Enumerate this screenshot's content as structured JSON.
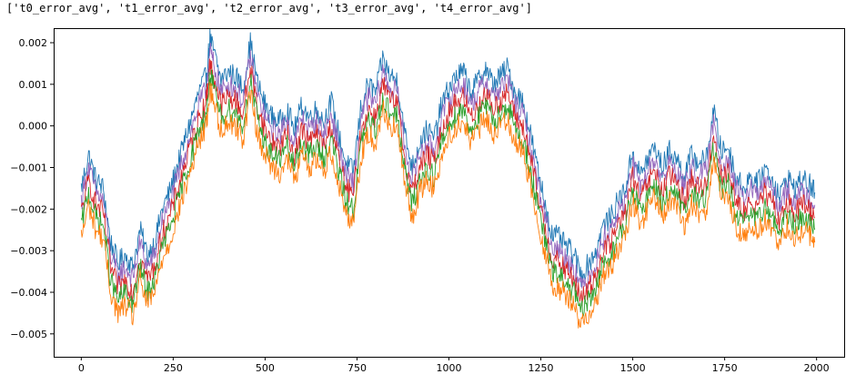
{
  "output_text": "['t0_error_avg', 't1_error_avg', 't2_error_avg', 't3_error_avg', 't4_error_avg']",
  "chart_data": {
    "type": "line",
    "title": "",
    "xlabel": "",
    "ylabel": "",
    "xlim": [
      -75,
      2075
    ],
    "ylim": [
      -0.00555,
      0.00235
    ],
    "xticks": [
      0,
      250,
      500,
      750,
      1000,
      1250,
      1500,
      1750,
      2000
    ],
    "xtick_labels": [
      "0",
      "250",
      "500",
      "750",
      "1000",
      "1250",
      "1500",
      "1750",
      "2000"
    ],
    "yticks": [
      0.002,
      0.001,
      0.0,
      -0.001,
      -0.002,
      -0.003,
      -0.004,
      -0.005
    ],
    "ytick_labels": [
      "0.002",
      "0.001",
      "0.000",
      "−0.001",
      "−0.002",
      "−0.003",
      "−0.004",
      "−0.005"
    ],
    "grid": false,
    "legend": "none",
    "x": [
      0,
      20,
      40,
      60,
      80,
      100,
      120,
      140,
      160,
      180,
      200,
      220,
      240,
      260,
      280,
      300,
      320,
      340,
      350,
      360,
      380,
      400,
      420,
      440,
      460,
      480,
      500,
      520,
      540,
      560,
      580,
      600,
      620,
      640,
      660,
      680,
      700,
      720,
      740,
      760,
      780,
      800,
      820,
      840,
      860,
      880,
      900,
      920,
      940,
      960,
      980,
      1000,
      1020,
      1040,
      1060,
      1080,
      1100,
      1120,
      1140,
      1160,
      1180,
      1200,
      1220,
      1240,
      1260,
      1280,
      1300,
      1320,
      1340,
      1360,
      1380,
      1400,
      1420,
      1440,
      1460,
      1480,
      1500,
      1520,
      1540,
      1560,
      1580,
      1600,
      1620,
      1640,
      1660,
      1680,
      1700,
      1720,
      1740,
      1760,
      1780,
      1800,
      1820,
      1840,
      1860,
      1880,
      1900,
      1920,
      1940,
      1960,
      1980,
      1995
    ],
    "series": [
      {
        "color": "#1f77b4",
        "values": [
          -0.0015,
          -0.0007,
          -0.0013,
          -0.0015,
          -0.0028,
          -0.0033,
          -0.0031,
          -0.0034,
          -0.0025,
          -0.0031,
          -0.0028,
          -0.002,
          -0.0016,
          -0.001,
          -0.0004,
          0.0002,
          0.0008,
          0.0012,
          0.0021,
          0.0018,
          0.0011,
          0.0013,
          0.0012,
          0.0009,
          0.002,
          0.001,
          0.0005,
          0.0002,
          0.0001,
          0.0004,
          -0.0001,
          0.0005,
          0.0002,
          0.0004,
          0.0001,
          0.0006,
          -0.0002,
          -0.0009,
          -0.0011,
          0.0004,
          0.001,
          0.0008,
          0.0016,
          0.0012,
          0.0011,
          -0.0002,
          -0.001,
          -0.0004,
          -0.0001,
          -0.0003,
          0.0005,
          0.0009,
          0.0012,
          0.0013,
          0.0008,
          0.0011,
          0.0014,
          0.001,
          0.0012,
          0.0014,
          0.0008,
          0.0006,
          -0.0001,
          -0.001,
          -0.0018,
          -0.0026,
          -0.0027,
          -0.0029,
          -0.0031,
          -0.0036,
          -0.0033,
          -0.003,
          -0.0024,
          -0.0022,
          -0.0018,
          -0.0015,
          -0.0006,
          -0.0012,
          -0.0008,
          -0.0005,
          -0.001,
          -0.0006,
          -0.0008,
          -0.0012,
          -0.0007,
          -0.0009,
          -0.0008,
          0.0004,
          -0.0006,
          -0.0005,
          -0.0012,
          -0.0015,
          -0.0012,
          -0.0014,
          -0.001,
          -0.0013,
          -0.0017,
          -0.0012,
          -0.0015,
          -0.0013,
          -0.0014,
          -0.0016
        ]
      },
      {
        "color": "#9467bd",
        "values": [
          -0.0018,
          -0.001,
          -0.0016,
          -0.0018,
          -0.0031,
          -0.0036,
          -0.0034,
          -0.0037,
          -0.0028,
          -0.0034,
          -0.0031,
          -0.0023,
          -0.0019,
          -0.0013,
          -0.0007,
          -0.0001,
          0.0005,
          0.0009,
          0.0018,
          0.0015,
          0.0008,
          0.001,
          0.0009,
          0.0006,
          0.0017,
          0.0007,
          0.0002,
          -0.0001,
          -0.0002,
          0.0001,
          -0.0004,
          0.0002,
          -0.0001,
          0.0001,
          -0.0002,
          0.0003,
          -0.0005,
          -0.0012,
          -0.0014,
          0.0001,
          0.0007,
          0.0005,
          0.0013,
          0.0009,
          0.0008,
          -0.0005,
          -0.0013,
          -0.0007,
          -0.0004,
          -0.0006,
          0.0002,
          0.0006,
          0.0009,
          0.001,
          0.0005,
          0.0008,
          0.0011,
          0.0007,
          0.0009,
          0.0011,
          0.0005,
          0.0003,
          -0.0004,
          -0.0013,
          -0.0021,
          -0.0029,
          -0.003,
          -0.0032,
          -0.0034,
          -0.0039,
          -0.0036,
          -0.0033,
          -0.0027,
          -0.0025,
          -0.0021,
          -0.0018,
          -0.0009,
          -0.0015,
          -0.0011,
          -0.0008,
          -0.0013,
          -0.0009,
          -0.0011,
          -0.0015,
          -0.001,
          -0.0012,
          -0.0011,
          0.0001,
          -0.0009,
          -0.0008,
          -0.0015,
          -0.0018,
          -0.0015,
          -0.0017,
          -0.0013,
          -0.0016,
          -0.002,
          -0.0015,
          -0.0018,
          -0.0016,
          -0.0017,
          -0.0019
        ]
      },
      {
        "color": "#d62728",
        "values": [
          -0.0021,
          -0.0013,
          -0.0019,
          -0.0021,
          -0.0034,
          -0.0039,
          -0.0037,
          -0.004,
          -0.0031,
          -0.0037,
          -0.0034,
          -0.0026,
          -0.0022,
          -0.0016,
          -0.001,
          -0.0004,
          0.0002,
          0.0006,
          0.0015,
          0.0012,
          0.0005,
          0.0007,
          0.0006,
          0.0003,
          0.0014,
          0.0004,
          -0.0001,
          -0.0004,
          -0.0005,
          -0.0002,
          -0.0007,
          -0.0001,
          -0.0004,
          -0.0002,
          -0.0005,
          0.0,
          -0.0008,
          -0.0015,
          -0.0017,
          -0.0002,
          0.0004,
          0.0002,
          0.001,
          0.0006,
          0.0005,
          -0.0008,
          -0.0016,
          -0.001,
          -0.0007,
          -0.0009,
          -0.0001,
          0.0003,
          0.0006,
          0.0007,
          0.0002,
          0.0005,
          0.0008,
          0.0004,
          0.0006,
          0.0008,
          0.0002,
          0.0,
          -0.0007,
          -0.0016,
          -0.0024,
          -0.0032,
          -0.0033,
          -0.0035,
          -0.0037,
          -0.0042,
          -0.0039,
          -0.0036,
          -0.003,
          -0.0028,
          -0.0024,
          -0.0021,
          -0.0012,
          -0.0018,
          -0.0014,
          -0.0011,
          -0.0016,
          -0.0012,
          -0.0014,
          -0.0018,
          -0.0013,
          -0.0015,
          -0.0014,
          -0.0002,
          -0.0012,
          -0.0011,
          -0.0018,
          -0.0021,
          -0.0018,
          -0.002,
          -0.0016,
          -0.0019,
          -0.0023,
          -0.0018,
          -0.0021,
          -0.0019,
          -0.002,
          -0.0022
        ]
      },
      {
        "color": "#2ca02c",
        "values": [
          -0.0024,
          -0.0016,
          -0.0022,
          -0.0024,
          -0.0037,
          -0.0042,
          -0.004,
          -0.0043,
          -0.0034,
          -0.004,
          -0.0037,
          -0.0029,
          -0.0025,
          -0.0019,
          -0.0013,
          -0.0007,
          -0.0001,
          0.0003,
          0.0012,
          0.0009,
          0.0002,
          0.0004,
          0.0003,
          0.0,
          0.0011,
          0.0001,
          -0.0004,
          -0.0007,
          -0.0008,
          -0.0005,
          -0.001,
          -0.0004,
          -0.0007,
          -0.0005,
          -0.0008,
          -0.0003,
          -0.0011,
          -0.0018,
          -0.002,
          -0.0005,
          0.0001,
          -0.0001,
          0.0007,
          0.0003,
          0.0002,
          -0.0011,
          -0.0019,
          -0.0013,
          -0.001,
          -0.0012,
          -0.0004,
          0.0,
          0.0003,
          0.0004,
          -0.0001,
          0.0002,
          0.0005,
          0.0001,
          0.0003,
          0.0005,
          -0.0001,
          -0.0003,
          -0.001,
          -0.0019,
          -0.0027,
          -0.0035,
          -0.0036,
          -0.0038,
          -0.004,
          -0.0045,
          -0.0042,
          -0.0039,
          -0.0033,
          -0.0031,
          -0.0027,
          -0.0024,
          -0.0015,
          -0.0021,
          -0.0017,
          -0.0014,
          -0.0019,
          -0.0015,
          -0.0017,
          -0.0021,
          -0.0016,
          -0.0018,
          -0.0017,
          -0.0005,
          -0.0015,
          -0.0014,
          -0.0021,
          -0.0024,
          -0.0021,
          -0.0023,
          -0.0019,
          -0.0022,
          -0.0026,
          -0.0021,
          -0.0024,
          -0.0022,
          -0.0023,
          -0.0025
        ]
      },
      {
        "color": "#ff7f0e",
        "values": [
          -0.0027,
          -0.0019,
          -0.0025,
          -0.0027,
          -0.004,
          -0.0045,
          -0.0043,
          -0.0046,
          -0.0037,
          -0.0043,
          -0.004,
          -0.0032,
          -0.0028,
          -0.0022,
          -0.0016,
          -0.001,
          -0.0004,
          0.0,
          0.0009,
          0.0006,
          -0.0001,
          0.0001,
          0.0,
          -0.0003,
          0.0008,
          -0.0002,
          -0.0007,
          -0.001,
          -0.0011,
          -0.0008,
          -0.0013,
          -0.0007,
          -0.001,
          -0.0008,
          -0.0011,
          -0.0006,
          -0.0014,
          -0.0021,
          -0.0023,
          -0.0008,
          -0.0002,
          -0.0004,
          0.0004,
          0.0,
          -0.0001,
          -0.0014,
          -0.0022,
          -0.0016,
          -0.0013,
          -0.0015,
          -0.0007,
          -0.0003,
          0.0,
          0.0001,
          -0.0004,
          -0.0001,
          0.0002,
          -0.0002,
          0.0,
          0.0002,
          -0.0004,
          -0.0006,
          -0.0013,
          -0.0022,
          -0.003,
          -0.0038,
          -0.0039,
          -0.0041,
          -0.0043,
          -0.0048,
          -0.0045,
          -0.0042,
          -0.0036,
          -0.0034,
          -0.003,
          -0.0027,
          -0.0018,
          -0.0024,
          -0.002,
          -0.0017,
          -0.0022,
          -0.0018,
          -0.002,
          -0.0024,
          -0.0019,
          -0.0021,
          -0.002,
          -0.0008,
          -0.0018,
          -0.0017,
          -0.0024,
          -0.0027,
          -0.0024,
          -0.0026,
          -0.0022,
          -0.0025,
          -0.0029,
          -0.0024,
          -0.0027,
          -0.0025,
          -0.0026,
          -0.0028
        ]
      }
    ]
  }
}
